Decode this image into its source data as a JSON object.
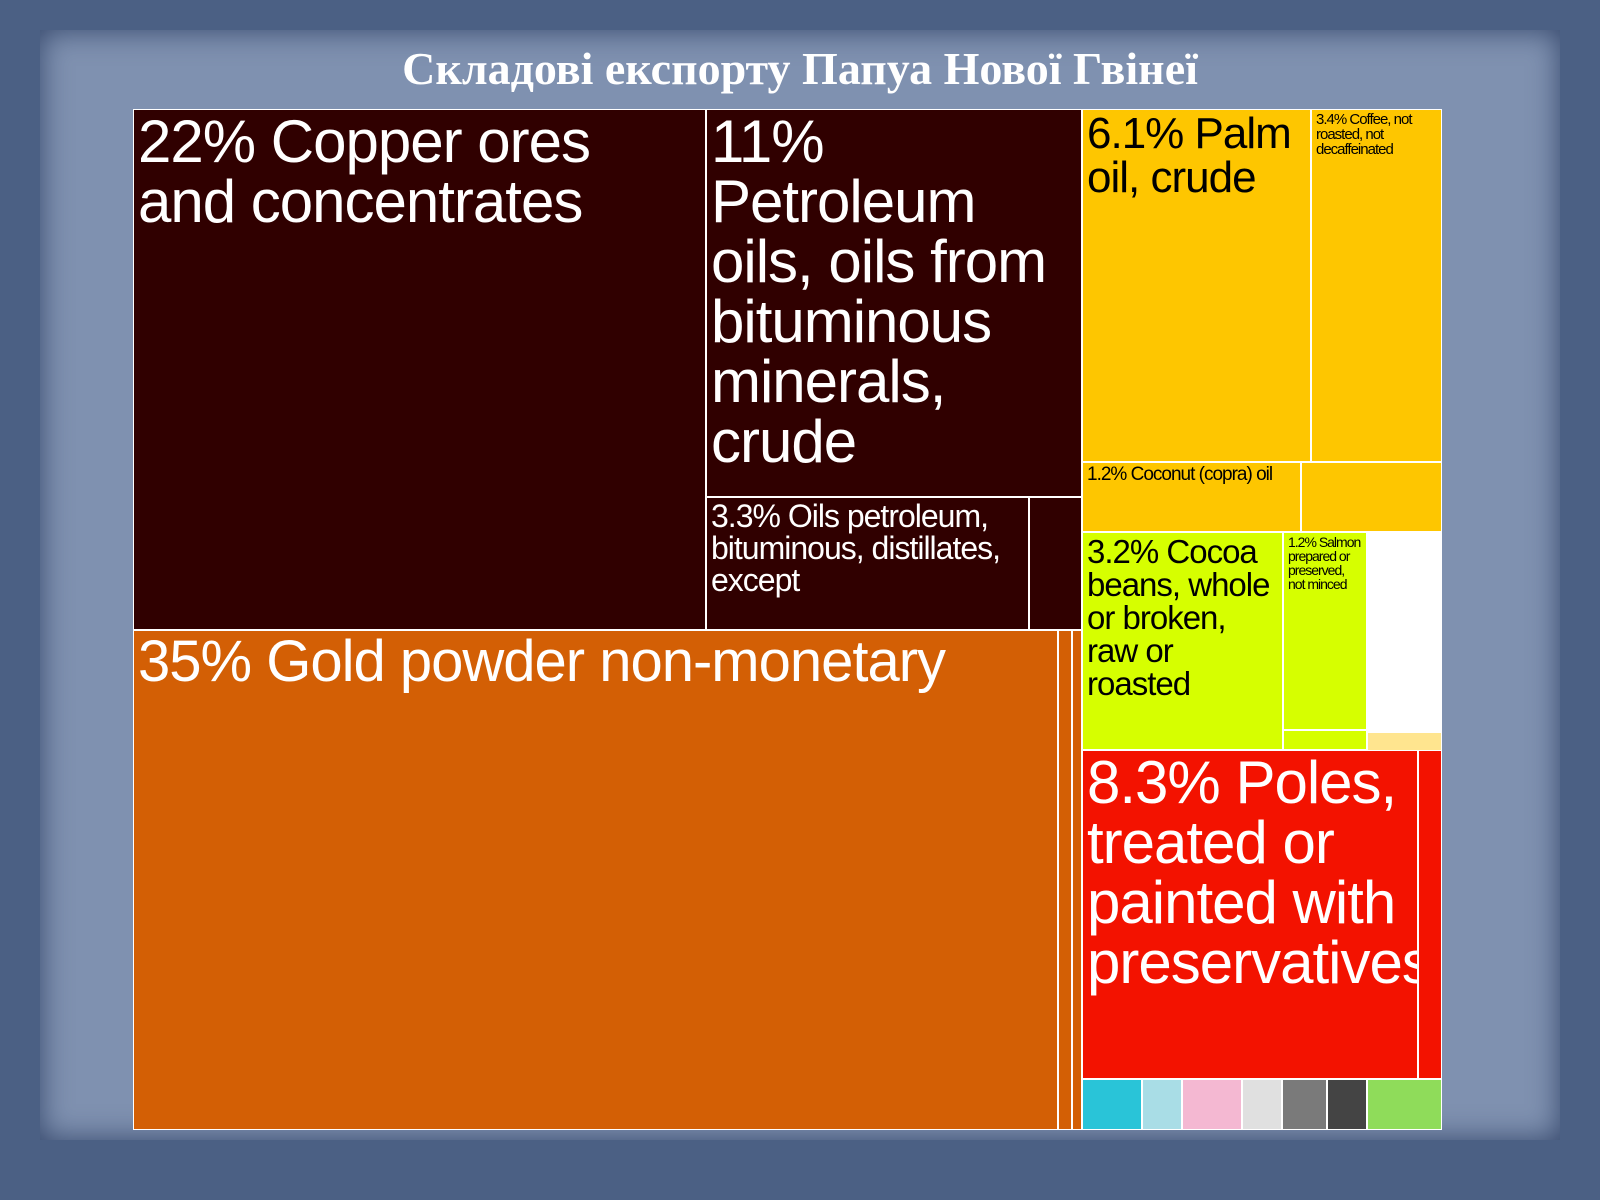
{
  "chart_data": {
    "type": "treemap",
    "title": "Складові експорту Папуа Нової Гвінеї",
    "categories": [
      "Copper ores and concentrates",
      "Petroleum oils, oils from bituminous minerals, crude",
      "Oils petroleum, bituminous, distillates, except",
      "Gold powder non-monetary",
      "Palm oil, crude",
      "Coffee, not roasted, not decaffeinated",
      "Coconut (copra) oil",
      "Cocoa beans, whole or broken, raw or roasted",
      "Salmon prepared or preserved, not minced",
      "Poles, treated or painted with preservatives"
    ],
    "values": [
      22,
      11,
      3.3,
      35,
      6.1,
      3.4,
      1.2,
      3.2,
      1.2,
      8.3
    ],
    "value_labels": [
      "22%",
      "11%",
      "3.3%",
      "35%",
      "6.1%",
      "3.4%",
      "1.2%",
      "3.2%",
      "1.2%",
      "8.3%"
    ],
    "colors": [
      "#300000",
      "#300000",
      "#300000",
      "#d35f05",
      "#fec600",
      "#fec600",
      "#fec600",
      "#d6ff00",
      "#d6ff00",
      "#f31200"
    ]
  }
}
